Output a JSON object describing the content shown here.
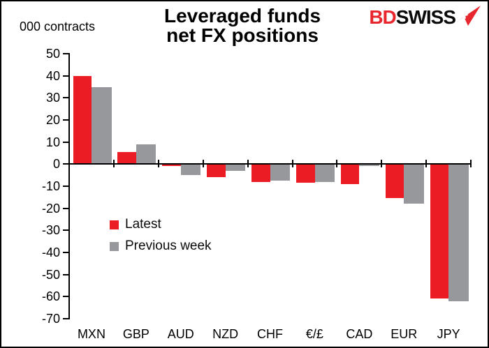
{
  "header": {
    "units_label": "000 contracts",
    "title_line1": "Leveraged funds",
    "title_line2": "net FX positions",
    "logo": {
      "text_part1": "BD",
      "text_part2": "SWISS",
      "color_red": "#e8262d",
      "color_black": "#0a0a0a",
      "icon": "swiss-arrow-icon"
    }
  },
  "chart_data": {
    "type": "bar",
    "title": "Leveraged funds net FX positions",
    "units": "000 contracts",
    "categories": [
      "MXN",
      "GBP",
      "AUD",
      "NZD",
      "CHF",
      "€/£",
      "CAD",
      "EUR",
      "JPY"
    ],
    "series": [
      {
        "name": "Latest",
        "color": "#ec1c24",
        "values": [
          40,
          5.5,
          -1,
          -6,
          -8,
          -8.5,
          -9,
          -15.5,
          -61
        ]
      },
      {
        "name": "Previous week",
        "color": "#97989b",
        "values": [
          35,
          9,
          -5,
          -3,
          -7.5,
          -8,
          -1,
          -18,
          -62
        ]
      }
    ],
    "ylim": [
      -70,
      50
    ],
    "yticks": [
      50,
      40,
      30,
      20,
      10,
      0,
      -10,
      -20,
      -30,
      -40,
      -50,
      -60,
      -70
    ],
    "grid": false,
    "legend_position": "inside-left",
    "axis_color": "#000000",
    "background": "#ffffff"
  }
}
